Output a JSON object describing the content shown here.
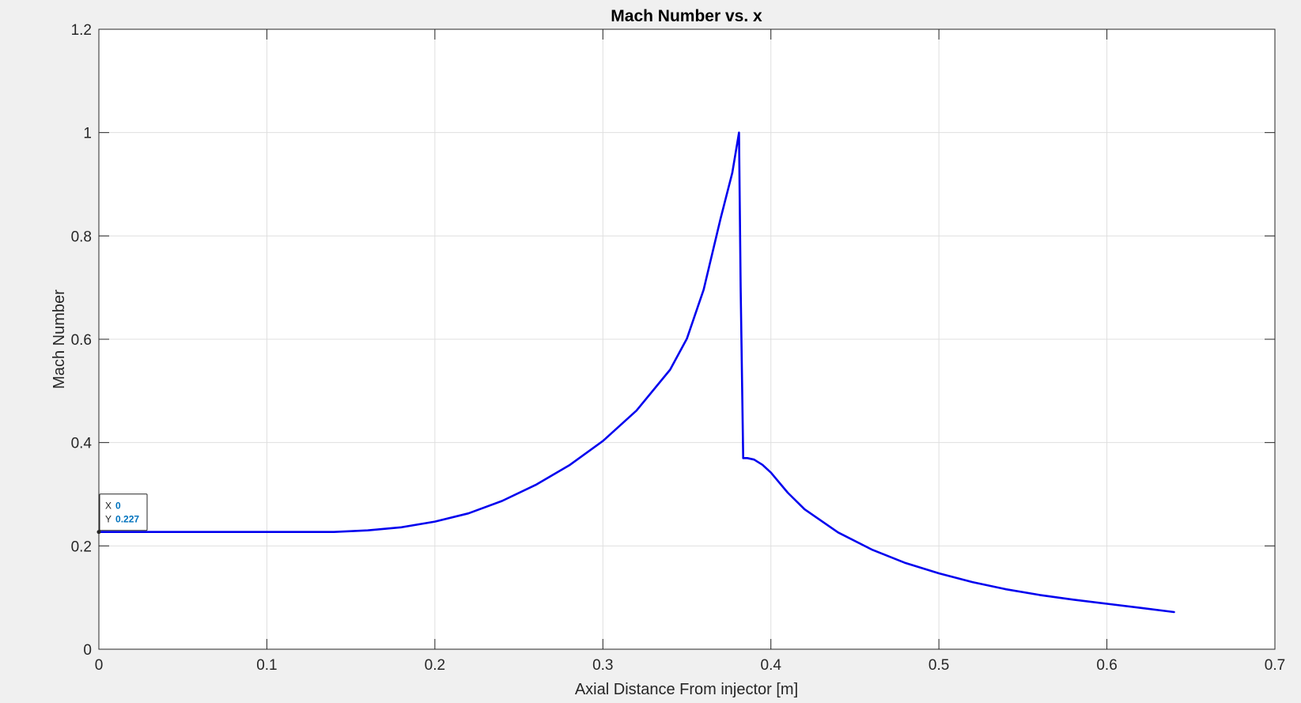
{
  "chart_data": {
    "type": "line",
    "title": "Mach Number vs. x",
    "xlabel": "Axial Distance From injector [m]",
    "ylabel": "Mach Number",
    "xlim": [
      0,
      0.7
    ],
    "ylim": [
      0,
      1.2
    ],
    "grid": true,
    "x_ticks": [
      0,
      0.1,
      0.2,
      0.3,
      0.4,
      0.5,
      0.6,
      0.7
    ],
    "y_ticks": [
      0,
      0.2,
      0.4,
      0.6,
      0.8,
      1,
      1.2
    ],
    "x_tick_labels": [
      "0",
      "0.1",
      "0.2",
      "0.3",
      "0.4",
      "0.5",
      "0.6",
      "0.7"
    ],
    "y_tick_labels": [
      "0",
      "0.2",
      "0.4",
      "0.6",
      "0.8",
      "1",
      "1.2"
    ],
    "series": [
      {
        "name": "Mach Number",
        "color": "#0000ee",
        "x": [
          0,
          0.05,
          0.1,
          0.14,
          0.16,
          0.18,
          0.2,
          0.22,
          0.24,
          0.26,
          0.28,
          0.3,
          0.32,
          0.34,
          0.35,
          0.36,
          0.37,
          0.377,
          0.381,
          0.382,
          0.3835,
          0.386,
          0.39,
          0.395,
          0.4,
          0.41,
          0.42,
          0.44,
          0.46,
          0.48,
          0.5,
          0.52,
          0.54,
          0.56,
          0.58,
          0.6,
          0.62,
          0.64
        ],
        "y": [
          0.227,
          0.227,
          0.227,
          0.227,
          0.23,
          0.236,
          0.247,
          0.263,
          0.287,
          0.318,
          0.356,
          0.403,
          0.462,
          0.541,
          0.601,
          0.696,
          0.833,
          0.922,
          1.0,
          0.7,
          0.37,
          0.37,
          0.367,
          0.357,
          0.342,
          0.303,
          0.271,
          0.226,
          0.193,
          0.167,
          0.147,
          0.13,
          0.116,
          0.105,
          0.096,
          0.088,
          0.08,
          0.072
        ]
      }
    ],
    "datatip": {
      "x_label": "X",
      "y_label": "Y",
      "x_value": "0",
      "y_value": "0.227",
      "x": 0,
      "y": 0.227
    }
  }
}
